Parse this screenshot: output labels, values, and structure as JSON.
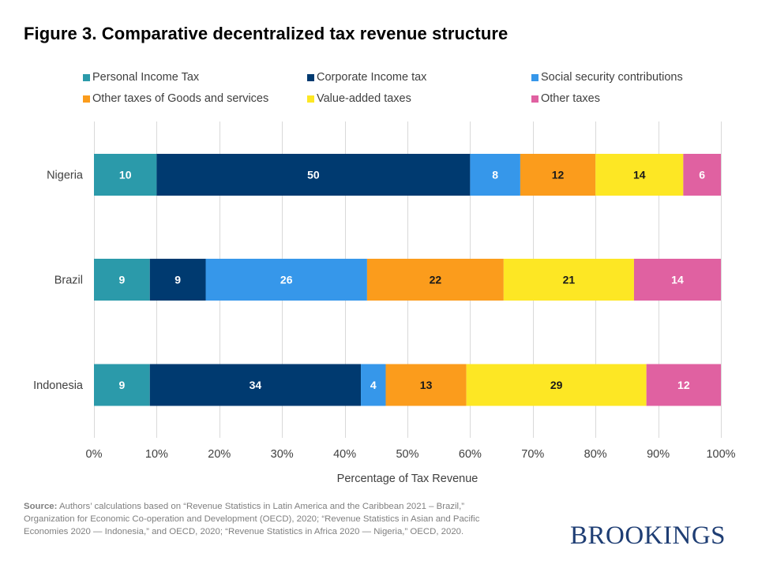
{
  "title": "Figure 3. Comparative decentralized tax revenue structure",
  "legend": [
    {
      "label": "Personal Income Tax",
      "color": "#2b9aaa"
    },
    {
      "label": "Corporate Income tax",
      "color": "#003a70"
    },
    {
      "label": "Social security contributions",
      "color": "#3697ea"
    },
    {
      "label": "Other taxes of Goods and services",
      "color": "#fb9c1c"
    },
    {
      "label": "Value-added taxes",
      "color": "#fde724"
    },
    {
      "label": "Other taxes",
      "color": "#e061a1"
    }
  ],
  "chart_data": {
    "type": "bar",
    "orientation": "horizontal",
    "stacked": "percent",
    "title": "Figure 3. Comparative decentralized tax revenue structure",
    "categories": [
      "Nigeria",
      "Brazil",
      "Indonesia"
    ],
    "series": [
      {
        "name": "Personal Income Tax",
        "color": "#2b9aaa",
        "label_color": "#ffffff",
        "values": [
          10,
          9,
          9
        ]
      },
      {
        "name": "Corporate Income tax",
        "color": "#003a70",
        "label_color": "#ffffff",
        "values": [
          50,
          9,
          34
        ]
      },
      {
        "name": "Social security contributions",
        "color": "#3697ea",
        "label_color": "#ffffff",
        "values": [
          8,
          26,
          4
        ]
      },
      {
        "name": "Other taxes of Goods and services",
        "color": "#fb9c1c",
        "label_color": "#1a1a1a",
        "values": [
          12,
          22,
          13
        ]
      },
      {
        "name": "Value-added taxes",
        "color": "#fde724",
        "label_color": "#1a1a1a",
        "values": [
          14,
          21,
          29
        ]
      },
      {
        "name": "Other taxes",
        "color": "#e061a1",
        "label_color": "#ffffff",
        "values": [
          6,
          14,
          12
        ]
      }
    ],
    "xlabel": "Percentage of Tax Revenue",
    "ylabel": "",
    "xlim": [
      0,
      100
    ],
    "x_ticks": [
      "0%",
      "10%",
      "20%",
      "30%",
      "40%",
      "50%",
      "60%",
      "70%",
      "80%",
      "90%",
      "100%"
    ],
    "grid": true,
    "legend_position": "top"
  },
  "source": {
    "label": "Source:",
    "text": " Authors’ calculations based on “Revenue  Statistics in Latin America and the Caribbean  2021 – Brazil,” Organization for Economic Co-operation  and Development  (OECD), 2020; “Revenue  Statistics in Asian and Pacific Economies 2020 ― Indonesia,” and OECD, 2020; “Revenue  Statistics in Africa 2020 ― Nigeria,” OECD, 2020."
  },
  "logo": "BROOKINGS"
}
